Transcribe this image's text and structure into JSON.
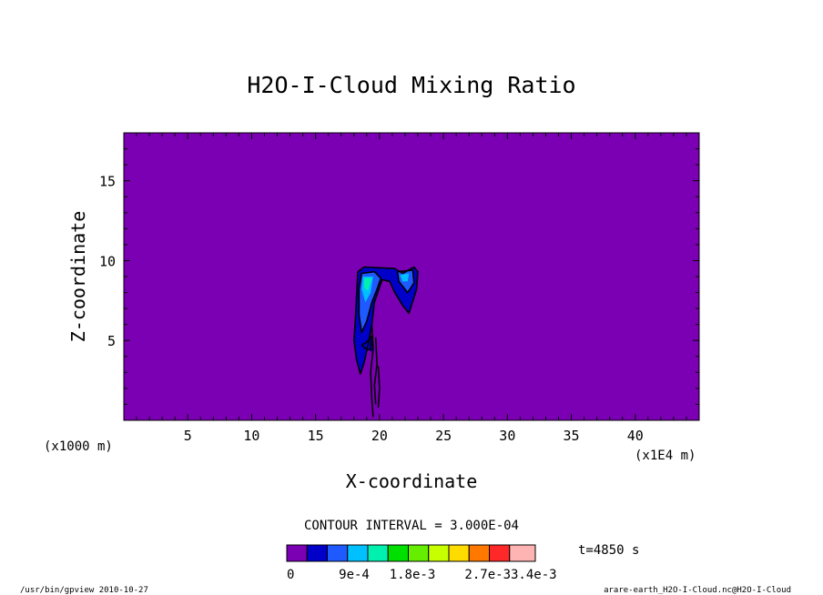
{
  "chart_data": {
    "type": "heatmap",
    "title": "H2O-I-Cloud Mixing Ratio",
    "xlabel": "X-coordinate",
    "ylabel": "Z-coordinate",
    "x_unit_left": "(x1000 m)",
    "x_unit_right": "(x1E4 m)",
    "xlim": [
      0,
      45
    ],
    "ylim": [
      0,
      18
    ],
    "xticks": [
      5,
      10,
      15,
      20,
      25,
      30,
      35,
      40
    ],
    "yticks": [
      5,
      10,
      15
    ],
    "contour_interval_text": "CONTOUR INTERVAL = 3.000E-04",
    "time_text": "t=4850 s",
    "background_color": "#7b00b4",
    "colorbar": {
      "colors": [
        "#7b00b4",
        "#0000c8",
        "#1e5aff",
        "#00c0ff",
        "#00f0b0",
        "#00e000",
        "#66ee00",
        "#c8ff00",
        "#ffdc00",
        "#ff7800",
        "#ff2828",
        "#ffb4b4"
      ],
      "labels": [
        "0",
        "9e-4",
        "1.8e-3",
        "2.7e-3",
        "3.4e-3"
      ],
      "label_display": [
        "0",
        "9e-4",
        "1.8e-3",
        "2.7e-33.4e-3"
      ]
    },
    "cloud_regions": [
      {
        "level": 1,
        "color": "#0000c8",
        "points": [
          [
            18.3,
            9.3
          ],
          [
            18.8,
            9.6
          ],
          [
            21.2,
            9.5
          ],
          [
            21.8,
            9.2
          ],
          [
            22.7,
            9.6
          ],
          [
            23.0,
            9.3
          ],
          [
            22.9,
            8.2
          ],
          [
            22.5,
            7.2
          ],
          [
            22.3,
            6.7
          ],
          [
            21.8,
            7.2
          ],
          [
            21.2,
            8.0
          ],
          [
            20.8,
            8.7
          ],
          [
            20.2,
            8.8
          ],
          [
            19.6,
            7.4
          ],
          [
            19.4,
            6.0
          ],
          [
            19.1,
            4.7
          ],
          [
            18.8,
            3.6
          ],
          [
            18.5,
            2.9
          ],
          [
            18.2,
            3.8
          ],
          [
            18.0,
            5.0
          ],
          [
            18.1,
            6.2
          ],
          [
            18.2,
            7.7
          ]
        ]
      },
      {
        "level": 2,
        "color": "#1e5aff",
        "points": [
          [
            18.6,
            9.2
          ],
          [
            19.6,
            9.3
          ],
          [
            20.1,
            8.9
          ],
          [
            19.8,
            8.2
          ],
          [
            19.4,
            7.4
          ],
          [
            19.0,
            6.2
          ],
          [
            18.6,
            5.5
          ],
          [
            18.4,
            6.6
          ],
          [
            18.4,
            8.2
          ]
        ]
      },
      {
        "level": 3,
        "color": "#00c0ff",
        "points": [
          [
            18.7,
            9.0
          ],
          [
            19.5,
            9.0
          ],
          [
            19.3,
            8.0
          ],
          [
            18.9,
            7.4
          ],
          [
            18.6,
            8.2
          ]
        ]
      },
      {
        "level": 4,
        "color": "#00f0b0",
        "points": [
          [
            18.8,
            8.9
          ],
          [
            19.4,
            8.9
          ],
          [
            19.1,
            8.1
          ],
          [
            18.8,
            8.3
          ]
        ]
      },
      {
        "level": 2,
        "color": "#1e5aff",
        "points": [
          [
            21.4,
            9.3
          ],
          [
            22.6,
            9.4
          ],
          [
            22.7,
            8.6
          ],
          [
            22.2,
            8.0
          ],
          [
            21.5,
            8.7
          ]
        ]
      },
      {
        "level": 3,
        "color": "#00c0ff",
        "points": [
          [
            21.6,
            9.1
          ],
          [
            22.3,
            9.2
          ],
          [
            22.2,
            8.7
          ],
          [
            21.8,
            8.7
          ]
        ]
      },
      {
        "level": 1,
        "color": "#0000c8",
        "points": [
          [
            19.0,
            5.0
          ],
          [
            19.4,
            5.2
          ],
          [
            19.5,
            4.2
          ],
          [
            19.2,
            4.4
          ]
        ]
      }
    ],
    "contour_lines": [
      [
        [
          18.3,
          9.3
        ],
        [
          18.8,
          9.6
        ],
        [
          21.2,
          9.5
        ],
        [
          21.8,
          9.2
        ],
        [
          22.7,
          9.6
        ],
        [
          23.0,
          9.3
        ],
        [
          22.9,
          8.2
        ],
        [
          22.5,
          7.2
        ],
        [
          22.3,
          6.7
        ],
        [
          21.8,
          7.2
        ],
        [
          21.2,
          8.0
        ],
        [
          20.8,
          8.7
        ],
        [
          20.2,
          8.8
        ],
        [
          19.6,
          7.4
        ],
        [
          19.4,
          6.0
        ],
        [
          19.1,
          4.7
        ],
        [
          18.8,
          3.6
        ],
        [
          18.5,
          2.9
        ],
        [
          18.2,
          3.8
        ],
        [
          18.0,
          5.0
        ],
        [
          18.1,
          6.2
        ],
        [
          18.2,
          7.7
        ],
        [
          18.3,
          9.3
        ]
      ],
      [
        [
          18.6,
          9.2
        ],
        [
          19.6,
          9.3
        ],
        [
          20.1,
          8.9
        ],
        [
          19.8,
          8.2
        ],
        [
          19.4,
          7.4
        ],
        [
          19.0,
          6.2
        ],
        [
          18.6,
          5.5
        ],
        [
          18.4,
          6.6
        ],
        [
          18.4,
          8.2
        ],
        [
          18.6,
          9.2
        ]
      ],
      [
        [
          21.4,
          9.3
        ],
        [
          22.6,
          9.4
        ],
        [
          22.7,
          8.6
        ],
        [
          22.2,
          8.0
        ],
        [
          21.5,
          8.7
        ],
        [
          21.4,
          9.3
        ]
      ],
      [
        [
          19.4,
          6.0
        ],
        [
          19.5,
          4.5
        ],
        [
          19.3,
          3.0
        ],
        [
          19.4,
          1.3
        ],
        [
          19.5,
          0.2
        ]
      ],
      [
        [
          19.7,
          5.2
        ],
        [
          19.8,
          3.5
        ],
        [
          19.6,
          2.2
        ],
        [
          19.7,
          1.0
        ]
      ],
      [
        [
          19.9,
          3.4
        ],
        [
          20.0,
          2.0
        ],
        [
          19.9,
          0.8
        ]
      ],
      [
        [
          18.6,
          4.7
        ],
        [
          19.0,
          4.9
        ],
        [
          19.4,
          5.3
        ],
        [
          19.3,
          4.4
        ],
        [
          18.9,
          4.5
        ],
        [
          18.6,
          4.7
        ]
      ]
    ]
  },
  "footer": {
    "left": "/usr/bin/gpview  2010-10-27",
    "right": "arare-earth_H2O-I-Cloud.nc@H2O-I-Cloud"
  }
}
